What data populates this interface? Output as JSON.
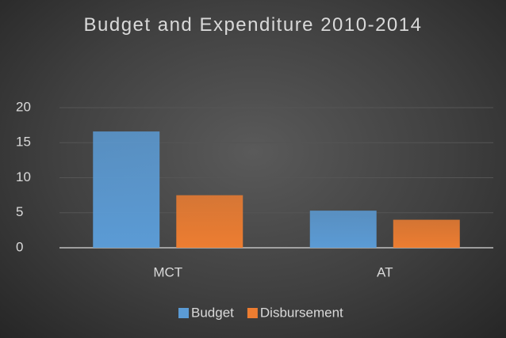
{
  "chart_data": {
    "type": "bar",
    "title": "Budget and Expenditure 2010-2014",
    "categories": [
      "MCT",
      "AT"
    ],
    "series": [
      {
        "name": "Budget",
        "color": "#5b9bd5",
        "values": [
          16.6,
          5.3
        ]
      },
      {
        "name": "Disbursement",
        "color": "#ed7d31",
        "values": [
          7.5,
          4.0
        ]
      }
    ],
    "ylim": [
      0,
      20
    ],
    "yticks": [
      0,
      5,
      10,
      15,
      20
    ],
    "grid": true,
    "legend": "bottom"
  }
}
